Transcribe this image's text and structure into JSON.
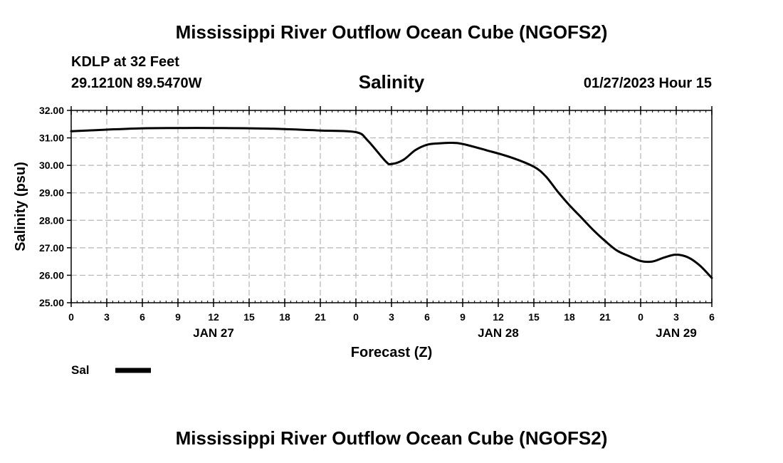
{
  "header": {
    "title": "Mississippi River Outflow Ocean Cube (NGOFS2)",
    "station": "KDLP at 32 Feet",
    "coordinates": "29.1210N  89.5470W",
    "timestamp": "01/27/2023 Hour 15"
  },
  "footer": {
    "title": "Mississippi River Outflow Ocean Cube (NGOFS2)"
  },
  "chart_data": {
    "type": "line",
    "title": "Salinity",
    "xlabel": "Forecast (Z)",
    "ylabel": "Salinity (psu)",
    "x_unit": "hours from JAN 27 00Z",
    "xlim": [
      0,
      54
    ],
    "ylim": [
      25.0,
      32.0
    ],
    "grid": true,
    "y_ticks": [
      "25.00",
      "26.00",
      "27.00",
      "28.00",
      "29.00",
      "30.00",
      "31.00",
      "32.00"
    ],
    "x_ticks": [
      {
        "x": 0,
        "label": "0"
      },
      {
        "x": 3,
        "label": "3"
      },
      {
        "x": 6,
        "label": "6"
      },
      {
        "x": 9,
        "label": "9"
      },
      {
        "x": 12,
        "label": "12"
      },
      {
        "x": 15,
        "label": "15"
      },
      {
        "x": 18,
        "label": "18"
      },
      {
        "x": 21,
        "label": "21"
      },
      {
        "x": 24,
        "label": "0"
      },
      {
        "x": 27,
        "label": "3"
      },
      {
        "x": 30,
        "label": "6"
      },
      {
        "x": 33,
        "label": "9"
      },
      {
        "x": 36,
        "label": "12"
      },
      {
        "x": 39,
        "label": "15"
      },
      {
        "x": 42,
        "label": "18"
      },
      {
        "x": 45,
        "label": "21"
      },
      {
        "x": 48,
        "label": "0"
      },
      {
        "x": 51,
        "label": "3"
      },
      {
        "x": 54,
        "label": "6"
      }
    ],
    "date_labels": [
      {
        "x": 12,
        "label": "JAN 27"
      },
      {
        "x": 36,
        "label": "JAN 28"
      },
      {
        "x": 51,
        "label": "JAN 29"
      }
    ],
    "series": [
      {
        "name": "Sal",
        "color": "#000000",
        "x": [
          0,
          3,
          6,
          9,
          12,
          15,
          18,
          21,
          24,
          25,
          26.5,
          27,
          28,
          29,
          30,
          31,
          32,
          33,
          35,
          37,
          39,
          40,
          41,
          42,
          43,
          44,
          45,
          46,
          47,
          48,
          49,
          50,
          51,
          52,
          53,
          54
        ],
        "values": [
          31.24,
          31.3,
          31.35,
          31.36,
          31.36,
          31.35,
          31.32,
          31.27,
          31.21,
          30.9,
          30.15,
          30.05,
          30.2,
          30.55,
          30.75,
          30.8,
          30.82,
          30.78,
          30.55,
          30.3,
          29.95,
          29.6,
          29.05,
          28.55,
          28.1,
          27.65,
          27.25,
          26.9,
          26.7,
          26.52,
          26.5,
          26.65,
          26.75,
          26.65,
          26.35,
          25.9
        ]
      }
    ],
    "legend": [
      {
        "label": "Sal",
        "style": "thick-line"
      }
    ]
  }
}
